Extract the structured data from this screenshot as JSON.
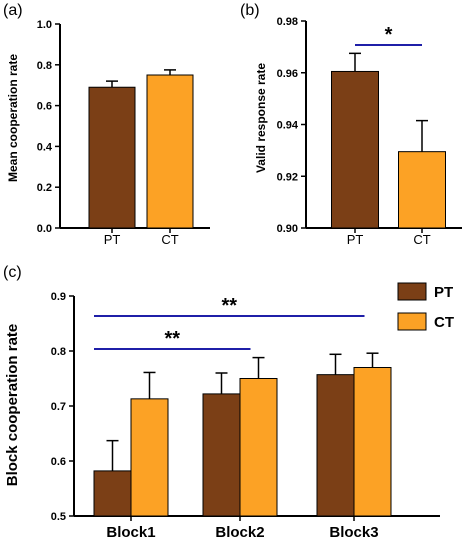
{
  "colors": {
    "PT": "#7b3f16",
    "CT": "#fca225",
    "sig_line": "#1f1fa8",
    "axis": "#000000"
  },
  "chart_data": [
    {
      "label": "(a)",
      "type": "bar",
      "categories": [
        "PT",
        "CT"
      ],
      "values": [
        0.69,
        0.75
      ],
      "errors": [
        0.03,
        0.025
      ],
      "ylabel": "Mean cooperation rate",
      "ylim": [
        0.0,
        1.0
      ],
      "yticks": [
        "0.0",
        "0.2",
        "0.4",
        "0.6",
        "0.8",
        "1.0"
      ],
      "ytick_values": [
        0.0,
        0.2,
        0.4,
        0.6,
        0.8,
        1.0
      ]
    },
    {
      "label": "(b)",
      "type": "bar",
      "categories": [
        "PT",
        "CT"
      ],
      "values": [
        0.9605,
        0.9295
      ],
      "errors": [
        0.007,
        0.012
      ],
      "ylabel": "Valid response rate",
      "ylim": [
        0.9,
        0.98
      ],
      "yticks": [
        "0.90",
        "0.92",
        "0.94",
        "0.96",
        "0.98"
      ],
      "ytick_values": [
        0.9,
        0.92,
        0.94,
        0.96,
        0.98
      ],
      "significance": [
        {
          "from": 0,
          "to": 1,
          "text": "*"
        }
      ]
    },
    {
      "label": "(c)",
      "type": "bar",
      "categories": [
        "Block1",
        "Block2",
        "Block3"
      ],
      "series": [
        {
          "name": "PT",
          "values": [
            0.582,
            0.722,
            0.757
          ],
          "errors": [
            0.055,
            0.038,
            0.037
          ]
        },
        {
          "name": "CT",
          "values": [
            0.713,
            0.75,
            0.77
          ],
          "errors": [
            0.048,
            0.038,
            0.026
          ]
        }
      ],
      "ylabel": "Block cooperation rate",
      "ylim": [
        0.5,
        0.9
      ],
      "yticks": [
        "0.5",
        "0.6",
        "0.7",
        "0.8",
        "0.9"
      ],
      "ytick_values": [
        0.5,
        0.6,
        0.7,
        0.8,
        0.9
      ],
      "legend": "top-right",
      "significance": [
        {
          "from": 0,
          "to": 1,
          "text": "**"
        },
        {
          "from": 0,
          "to": 2,
          "text": "**"
        }
      ]
    }
  ]
}
